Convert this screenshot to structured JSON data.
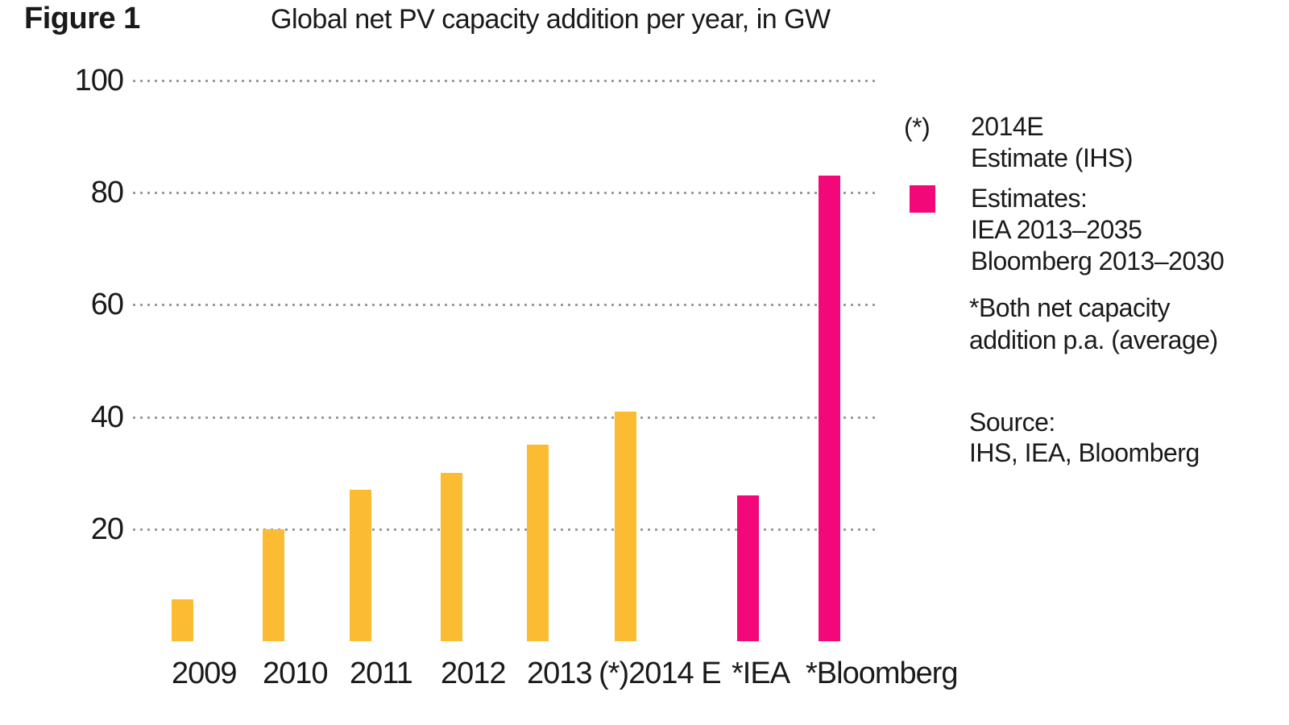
{
  "figure_label": "Figure 1",
  "title": "Global net PV capacity addition per year, in GW",
  "colors": {
    "historical": "#FBBB33",
    "estimate": "#F30879",
    "gridline": "#9B9B9B",
    "text": "#1A1A1A"
  },
  "chart_data": {
    "type": "bar",
    "title": "Global net PV capacity addition per year, in GW",
    "unit": "GW",
    "categories": [
      "2009",
      "2010",
      "2011",
      "2012",
      "2013",
      "(*)2014 E",
      "*IEA",
      "*Bloomberg"
    ],
    "values": [
      7.5,
      20,
      27,
      30,
      35,
      41,
      26,
      83
    ],
    "bar_colors": [
      "historical",
      "historical",
      "historical",
      "historical",
      "historical",
      "historical",
      "estimate",
      "estimate"
    ],
    "ylim": [
      0,
      100
    ],
    "yticks": [
      20,
      40,
      60,
      80,
      100
    ],
    "grid": "dotted-horizontal",
    "legend_position": "right"
  },
  "legend": {
    "star_symbol": "(*)",
    "star_lines": [
      "2014E",
      "Estimate (IHS)"
    ],
    "swatch_lines": [
      "Estimates:",
      "IEA 2013–2035",
      "Bloomberg 2013–2030"
    ],
    "footnote_lines": [
      "*Both net capacity",
      "addition p.a. (average)"
    ],
    "source_lines": [
      "Source:",
      "IHS, IEA, Bloomberg"
    ]
  }
}
